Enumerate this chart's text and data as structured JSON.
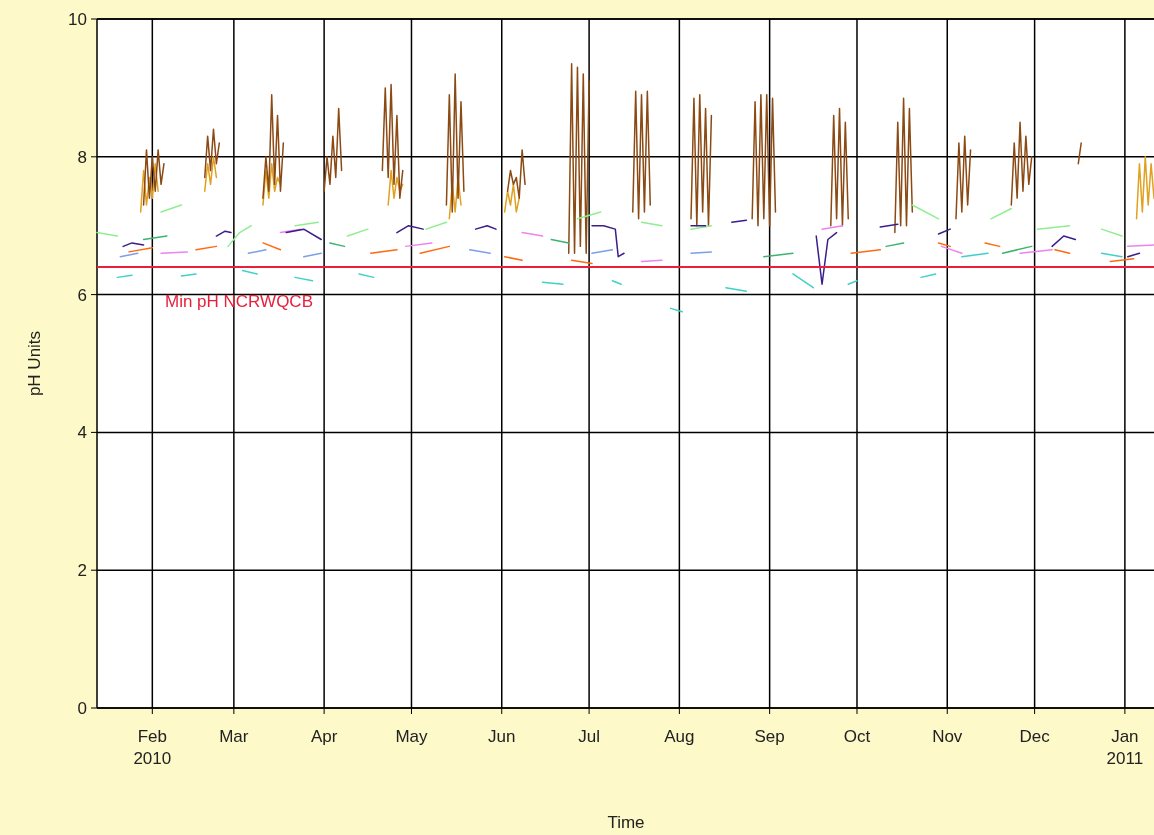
{
  "chart_data": {
    "type": "line",
    "xlabel": "Time",
    "ylabel": "pH Units",
    "xlim": [
      "2010-01-13",
      "2011-01-11"
    ],
    "ylim": [
      0,
      10
    ],
    "xticks": [
      {
        "value": "2010-02-01",
        "label": "Feb\n2010"
      },
      {
        "value": "2010-03-01",
        "label": "Mar"
      },
      {
        "value": "2010-04-01",
        "label": "Apr"
      },
      {
        "value": "2010-05-01",
        "label": "May"
      },
      {
        "value": "2010-06-01",
        "label": "Jun"
      },
      {
        "value": "2010-07-01",
        "label": "Jul"
      },
      {
        "value": "2010-08-01",
        "label": "Aug"
      },
      {
        "value": "2010-09-01",
        "label": "Sep"
      },
      {
        "value": "2010-10-01",
        "label": "Oct"
      },
      {
        "value": "2010-11-01",
        "label": "Nov"
      },
      {
        "value": "2010-12-01",
        "label": "Dec"
      },
      {
        "value": "2011-01-01",
        "label": "Jan\n2011"
      }
    ],
    "yticks": [
      0,
      2,
      4,
      6,
      8,
      10
    ],
    "grid": true,
    "ref_lines": [
      {
        "axis": "y",
        "value": 6.4,
        "label": "Min pH NCRWQCB",
        "color": "#e8203c"
      }
    ],
    "series": [
      {
        "color": "#e0a020",
        "x": [
          "2010-01-28",
          "2010-01-29",
          "2010-01-30",
          "2010-01-31",
          "2010-02-01",
          "2010-02-02",
          "2010-02-03",
          "2010-02-04",
          "2010-02-19",
          "2010-02-20",
          "2010-02-21",
          "2010-02-22",
          "2010-02-23",
          "2010-02-24",
          "2010-03-11",
          "2010-03-12",
          "2010-03-13",
          "2010-03-14",
          "2010-03-15",
          "2010-03-16",
          "2010-03-17",
          "2010-03-18",
          "2010-04-23",
          "2010-04-24",
          "2010-04-25",
          "2010-04-26",
          "2010-04-27",
          "2010-04-28",
          "2010-04-29",
          "2010-05-14",
          "2010-05-15",
          "2010-05-16",
          "2010-05-17",
          "2010-05-18",
          "2010-05-19",
          "2010-06-02",
          "2010-06-03",
          "2010-06-04",
          "2010-06-05",
          "2010-06-06",
          "2010-06-07",
          "2010-06-08",
          "2011-01-05",
          "2011-01-06",
          "2011-01-07",
          "2011-01-08",
          "2011-01-09",
          "2011-01-10",
          "2011-01-11"
        ],
        "values": [
          7.2,
          7.8,
          7.3,
          7.7,
          7.4,
          7.9,
          7.5,
          null,
          7.5,
          7.9,
          7.6,
          8.0,
          7.7,
          null,
          7.3,
          7.8,
          7.4,
          7.9,
          7.5,
          7.7,
          7.6,
          null,
          7.3,
          7.8,
          7.4,
          7.7,
          7.5,
          7.6,
          null,
          7.1,
          7.6,
          7.2,
          7.7,
          7.3,
          null,
          7.2,
          7.5,
          7.3,
          7.6,
          7.2,
          7.4,
          null,
          7.1,
          7.9,
          7.2,
          8.0,
          7.3,
          7.9,
          7.4
        ]
      },
      {
        "color": "#8b4a14",
        "x": [
          "2010-01-29",
          "2010-01-30",
          "2010-01-31",
          "2010-02-01",
          "2010-02-02",
          "2010-02-03",
          "2010-02-04",
          "2010-02-05",
          "2010-02-06",
          "2010-02-19",
          "2010-02-20",
          "2010-02-21",
          "2010-02-22",
          "2010-02-23",
          "2010-02-24",
          "2010-02-25",
          "2010-03-11",
          "2010-03-12",
          "2010-03-13",
          "2010-03-14",
          "2010-03-15",
          "2010-03-16",
          "2010-03-17",
          "2010-03-18",
          "2010-03-19",
          "2010-04-01",
          "2010-04-02",
          "2010-04-03",
          "2010-04-04",
          "2010-04-05",
          "2010-04-06",
          "2010-04-07",
          "2010-04-08",
          "2010-04-21",
          "2010-04-22",
          "2010-04-23",
          "2010-04-24",
          "2010-04-25",
          "2010-04-26",
          "2010-04-27",
          "2010-04-28",
          "2010-04-29",
          "2010-05-13",
          "2010-05-14",
          "2010-05-15",
          "2010-05-16",
          "2010-05-17",
          "2010-05-18",
          "2010-05-19",
          "2010-05-20",
          "2010-06-03",
          "2010-06-04",
          "2010-06-05",
          "2010-06-06",
          "2010-06-07",
          "2010-06-08",
          "2010-06-09",
          "2010-06-10",
          "2010-06-24",
          "2010-06-25",
          "2010-06-26",
          "2010-06-27",
          "2010-06-28",
          "2010-06-29",
          "2010-06-30",
          "2010-07-01",
          "2010-07-02",
          "2010-07-16",
          "2010-07-17",
          "2010-07-18",
          "2010-07-19",
          "2010-07-20",
          "2010-07-21",
          "2010-07-22",
          "2010-07-23",
          "2010-08-05",
          "2010-08-06",
          "2010-08-07",
          "2010-08-08",
          "2010-08-09",
          "2010-08-10",
          "2010-08-11",
          "2010-08-12",
          "2010-08-13",
          "2010-08-26",
          "2010-08-27",
          "2010-08-28",
          "2010-08-29",
          "2010-08-30",
          "2010-08-31",
          "2010-09-01",
          "2010-09-02",
          "2010-09-03",
          "2010-09-04",
          "2010-09-22",
          "2010-09-23",
          "2010-09-24",
          "2010-09-25",
          "2010-09-26",
          "2010-09-27",
          "2010-09-28",
          "2010-09-29",
          "2010-10-14",
          "2010-10-15",
          "2010-10-16",
          "2010-10-17",
          "2010-10-18",
          "2010-10-19",
          "2010-10-20",
          "2010-10-21",
          "2010-11-04",
          "2010-11-05",
          "2010-11-06",
          "2010-11-07",
          "2010-11-08",
          "2010-11-09",
          "2010-11-10",
          "2010-11-23",
          "2010-11-24",
          "2010-11-25",
          "2010-11-26",
          "2010-11-27",
          "2010-11-28",
          "2010-11-29",
          "2010-11-30",
          "2010-12-01",
          "2010-12-16",
          "2010-12-17"
        ],
        "values": [
          7.3,
          8.1,
          7.4,
          8.0,
          7.5,
          8.1,
          7.6,
          7.9,
          null,
          7.7,
          8.3,
          7.8,
          8.4,
          7.9,
          8.2,
          null,
          7.4,
          8.0,
          7.5,
          8.9,
          7.6,
          8.6,
          7.5,
          8.2,
          null,
          7.5,
          8.0,
          7.6,
          8.3,
          7.7,
          8.7,
          7.8,
          null,
          7.8,
          9.0,
          7.7,
          9.05,
          7.6,
          8.6,
          7.4,
          7.8,
          null,
          7.3,
          8.9,
          7.2,
          9.2,
          7.4,
          8.8,
          7.5,
          null,
          7.5,
          7.8,
          7.6,
          7.7,
          7.4,
          8.1,
          7.6,
          null,
          6.6,
          9.35,
          6.6,
          9.3,
          6.7,
          9.2,
          6.6,
          9.1,
          null,
          7.2,
          8.95,
          7.1,
          8.9,
          7.2,
          8.95,
          7.3,
          null,
          7.1,
          8.85,
          7.0,
          8.9,
          7.2,
          8.7,
          7.0,
          8.6,
          null,
          7.1,
          8.8,
          7.0,
          8.9,
          7.1,
          8.9,
          7.0,
          8.85,
          7.2,
          null,
          7.0,
          8.6,
          7.1,
          8.7,
          7.0,
          8.5,
          7.1,
          null,
          6.9,
          8.5,
          7.0,
          8.85,
          7.0,
          8.7,
          7.2,
          null,
          7.1,
          8.2,
          7.2,
          8.3,
          7.3,
          8.1,
          null,
          7.3,
          8.2,
          7.4,
          8.5,
          7.5,
          8.3,
          7.6,
          8.0,
          null,
          7.9,
          8.2
        ]
      },
      {
        "color": "#90ee90",
        "x": [
          "2010-01-13",
          "2010-01-20",
          "2010-01-21",
          "2010-02-04",
          "2010-02-11",
          "2010-02-12",
          "2010-02-27",
          "2010-03-03",
          "2010-03-07",
          "2010-03-08",
          "2010-03-22",
          "2010-03-30",
          "2010-03-31",
          "2010-04-09",
          "2010-04-16",
          "2010-04-17",
          "2010-05-06",
          "2010-05-13",
          "2010-05-14",
          "2010-06-27",
          "2010-07-05",
          "2010-07-06",
          "2010-07-19",
          "2010-07-26",
          "2010-07-27",
          "2010-08-05",
          "2010-08-12",
          "2010-08-13",
          "2010-10-20",
          "2010-10-29",
          "2010-10-30",
          "2010-11-16",
          "2010-11-23",
          "2010-11-24",
          "2010-12-02",
          "2010-12-13",
          "2010-12-14",
          "2010-12-24",
          "2010-12-31"
        ],
        "values": [
          6.9,
          6.85,
          null,
          7.2,
          7.3,
          null,
          6.7,
          6.9,
          7.0,
          null,
          7.0,
          7.05,
          null,
          6.85,
          6.95,
          null,
          6.95,
          7.05,
          null,
          7.1,
          7.2,
          null,
          7.05,
          7.0,
          null,
          6.95,
          7.0,
          null,
          7.3,
          7.1,
          null,
          7.1,
          7.25,
          null,
          6.95,
          7.0,
          null,
          6.95,
          6.85
        ]
      },
      {
        "color": "#3cb371",
        "x": [
          "2010-01-29",
          "2010-02-06",
          "2010-02-07",
          "2010-04-03",
          "2010-04-08",
          "2010-04-09",
          "2010-06-18",
          "2010-06-24",
          "2010-06-25",
          "2010-08-30",
          "2010-09-09",
          "2010-09-10",
          "2010-10-11",
          "2010-10-17",
          "2010-10-18",
          "2010-11-20",
          "2010-11-30"
        ],
        "values": [
          6.8,
          6.85,
          null,
          6.75,
          6.7,
          null,
          6.8,
          6.75,
          null,
          6.55,
          6.6,
          null,
          6.7,
          6.75,
          null,
          6.6,
          6.7
        ]
      },
      {
        "color": "#ee82ee",
        "x": [
          "2010-02-04",
          "2010-02-13",
          "2010-02-14",
          "2010-03-17",
          "2010-03-24",
          "2010-03-25",
          "2010-04-29",
          "2010-05-08",
          "2010-05-09",
          "2010-06-08",
          "2010-06-15",
          "2010-06-16",
          "2010-07-19",
          "2010-07-26",
          "2010-07-27",
          "2010-09-19",
          "2010-09-26",
          "2010-09-27",
          "2010-10-30",
          "2010-11-06",
          "2010-11-07",
          "2010-11-26",
          "2010-12-07",
          "2010-12-08",
          "2011-01-02",
          "2011-01-11"
        ],
        "values": [
          6.6,
          6.62,
          null,
          6.9,
          6.95,
          null,
          6.7,
          6.75,
          null,
          6.9,
          6.85,
          null,
          6.48,
          6.5,
          null,
          6.95,
          7.0,
          null,
          6.7,
          6.6,
          null,
          6.6,
          6.65,
          null,
          6.7,
          6.72
        ]
      },
      {
        "color": "#7b9fe8",
        "x": [
          "2010-01-21",
          "2010-01-27",
          "2010-01-28",
          "2010-03-06",
          "2010-03-12",
          "2010-03-13",
          "2010-03-25",
          "2010-03-31",
          "2010-04-01",
          "2010-05-21",
          "2010-05-28",
          "2010-05-29",
          "2010-07-02",
          "2010-07-09",
          "2010-07-10",
          "2010-08-05",
          "2010-08-12"
        ],
        "values": [
          6.55,
          6.6,
          null,
          6.6,
          6.65,
          null,
          6.55,
          6.6,
          null,
          6.65,
          6.6,
          null,
          6.6,
          6.65,
          null,
          6.6,
          6.62
        ]
      },
      {
        "color": "#3b1d8c",
        "x": [
          "2010-01-22",
          "2010-01-25",
          "2010-01-29",
          "2010-01-30",
          "2010-02-23",
          "2010-02-26",
          "2010-02-28",
          "2010-03-01",
          "2010-03-19",
          "2010-03-25",
          "2010-03-31",
          "2010-04-01",
          "2010-04-26",
          "2010-04-30",
          "2010-05-05",
          "2010-05-06",
          "2010-05-23",
          "2010-05-27",
          "2010-05-30",
          "2010-05-31",
          "2010-07-02",
          "2010-07-06",
          "2010-07-10",
          "2010-07-11",
          "2010-07-13",
          "2010-07-14",
          "2010-08-05",
          "2010-08-10",
          "2010-08-11",
          "2010-08-19",
          "2010-08-24",
          "2010-08-25",
          "2010-09-17",
          "2010-09-19",
          "2010-09-21",
          "2010-09-24",
          "2010-09-25",
          "2010-10-09",
          "2010-10-15",
          "2010-10-16",
          "2010-10-29",
          "2010-11-02",
          "2010-11-03",
          "2010-12-07",
          "2010-12-11",
          "2010-12-15",
          "2010-12-16",
          "2011-01-02",
          "2011-01-06"
        ],
        "values": [
          6.7,
          6.75,
          6.72,
          null,
          6.85,
          6.92,
          6.9,
          null,
          6.9,
          6.95,
          6.8,
          null,
          6.9,
          7.0,
          6.95,
          null,
          6.95,
          7.0,
          6.95,
          null,
          7.0,
          7.0,
          6.95,
          6.55,
          6.6,
          null,
          7.0,
          7.0,
          null,
          7.05,
          7.08,
          null,
          6.85,
          6.15,
          6.8,
          6.9,
          null,
          6.98,
          7.02,
          null,
          6.88,
          6.95,
          null,
          6.7,
          6.85,
          6.8,
          null,
          6.55,
          6.6
        ]
      },
      {
        "color": "#ff6a10",
        "x": [
          "2010-01-24",
          "2010-02-01",
          "2010-02-02",
          "2010-02-16",
          "2010-02-23",
          "2010-02-24",
          "2010-03-11",
          "2010-03-17",
          "2010-03-18",
          "2010-04-17",
          "2010-04-26",
          "2010-04-27",
          "2010-05-04",
          "2010-05-14",
          "2010-05-15",
          "2010-06-02",
          "2010-06-08",
          "2010-06-09",
          "2010-06-25",
          "2010-07-02",
          "2010-07-03",
          "2010-09-29",
          "2010-10-09",
          "2010-10-10",
          "2010-10-29",
          "2010-11-02",
          "2010-11-03",
          "2010-11-14",
          "2010-11-19",
          "2010-11-20",
          "2010-12-08",
          "2010-12-13",
          "2010-12-14",
          "2010-12-27",
          "2011-01-04"
        ],
        "values": [
          6.62,
          6.68,
          null,
          6.65,
          6.7,
          null,
          6.75,
          6.65,
          null,
          6.6,
          6.65,
          null,
          6.6,
          6.7,
          null,
          6.55,
          6.5,
          null,
          6.5,
          6.45,
          null,
          6.6,
          6.65,
          null,
          6.75,
          6.7,
          null,
          6.75,
          6.7,
          null,
          6.65,
          6.6,
          null,
          6.48,
          6.52
        ]
      },
      {
        "color": "#40d0c8",
        "x": [
          "2010-01-20",
          "2010-01-25",
          "2010-01-26",
          "2010-02-11",
          "2010-02-16",
          "2010-02-17",
          "2010-03-04",
          "2010-03-09",
          "2010-03-10",
          "2010-03-22",
          "2010-03-28",
          "2010-03-29",
          "2010-04-13",
          "2010-04-18",
          "2010-04-19",
          "2010-06-15",
          "2010-06-22",
          "2010-06-23",
          "2010-07-09",
          "2010-07-12",
          "2010-07-13",
          "2010-07-29",
          "2010-08-02",
          "2010-08-03",
          "2010-08-17",
          "2010-08-24",
          "2010-08-25",
          "2010-09-09",
          "2010-09-16",
          "2010-09-17",
          "2010-09-28",
          "2010-10-01",
          "2010-10-02",
          "2010-10-23",
          "2010-10-28",
          "2010-10-29",
          "2010-11-06",
          "2010-11-15",
          "2010-11-16",
          "2010-12-24",
          "2010-12-31"
        ],
        "values": [
          6.25,
          6.28,
          null,
          6.27,
          6.3,
          null,
          6.35,
          6.3,
          null,
          6.25,
          6.2,
          null,
          6.3,
          6.25,
          null,
          6.18,
          6.15,
          null,
          6.2,
          6.15,
          null,
          5.8,
          5.75,
          null,
          6.1,
          6.05,
          null,
          6.3,
          6.1,
          null,
          6.15,
          6.2,
          null,
          6.25,
          6.3,
          null,
          6.55,
          6.6,
          null,
          6.6,
          6.55
        ]
      }
    ]
  }
}
